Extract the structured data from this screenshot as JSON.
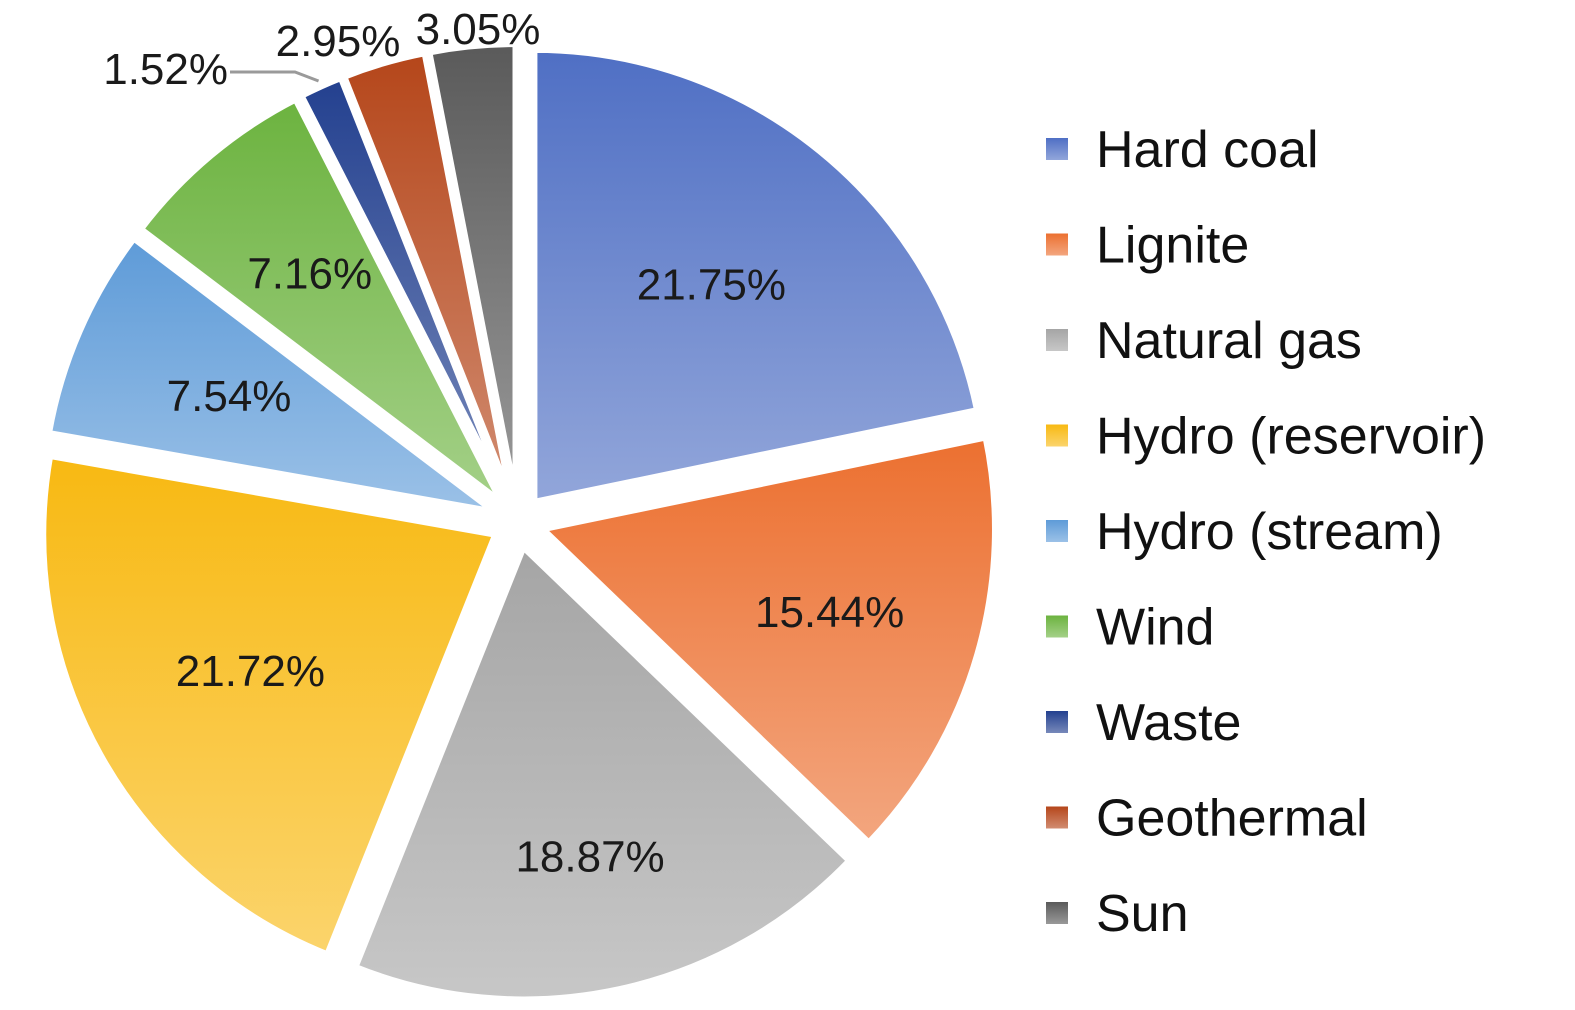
{
  "chart_data": {
    "type": "pie",
    "title": "",
    "legend_position": "right",
    "start_angle_deg": 0,
    "direction": "clockwise",
    "exploded": true,
    "slices": [
      {
        "name": "Hard coal",
        "value": 21.75,
        "label": "21.75%",
        "color": "#4f6fc4"
      },
      {
        "name": "Lignite",
        "value": 15.44,
        "label": "15.44%",
        "color": "#ec7030"
      },
      {
        "name": "Natural gas",
        "value": 18.87,
        "label": "18.87%",
        "color": "#a5a5a5"
      },
      {
        "name": "Hydro (reservoir)",
        "value": 21.72,
        "label": "21.72%",
        "color": "#f8b912"
      },
      {
        "name": "Hydro (stream)",
        "value": 7.54,
        "label": "7.54%",
        "color": "#5e9bd8"
      },
      {
        "name": "Wind",
        "value": 7.16,
        "label": "7.16%",
        "color": "#6cb33f"
      },
      {
        "name": "Waste",
        "value": 1.52,
        "label": "1.52%",
        "color": "#23408f"
      },
      {
        "name": "Geothermal",
        "value": 2.95,
        "label": "2.95%",
        "color": "#b5461a"
      },
      {
        "name": "Sun",
        "value": 3.05,
        "label": "3.05%",
        "color": "#5a5a5a"
      }
    ]
  }
}
